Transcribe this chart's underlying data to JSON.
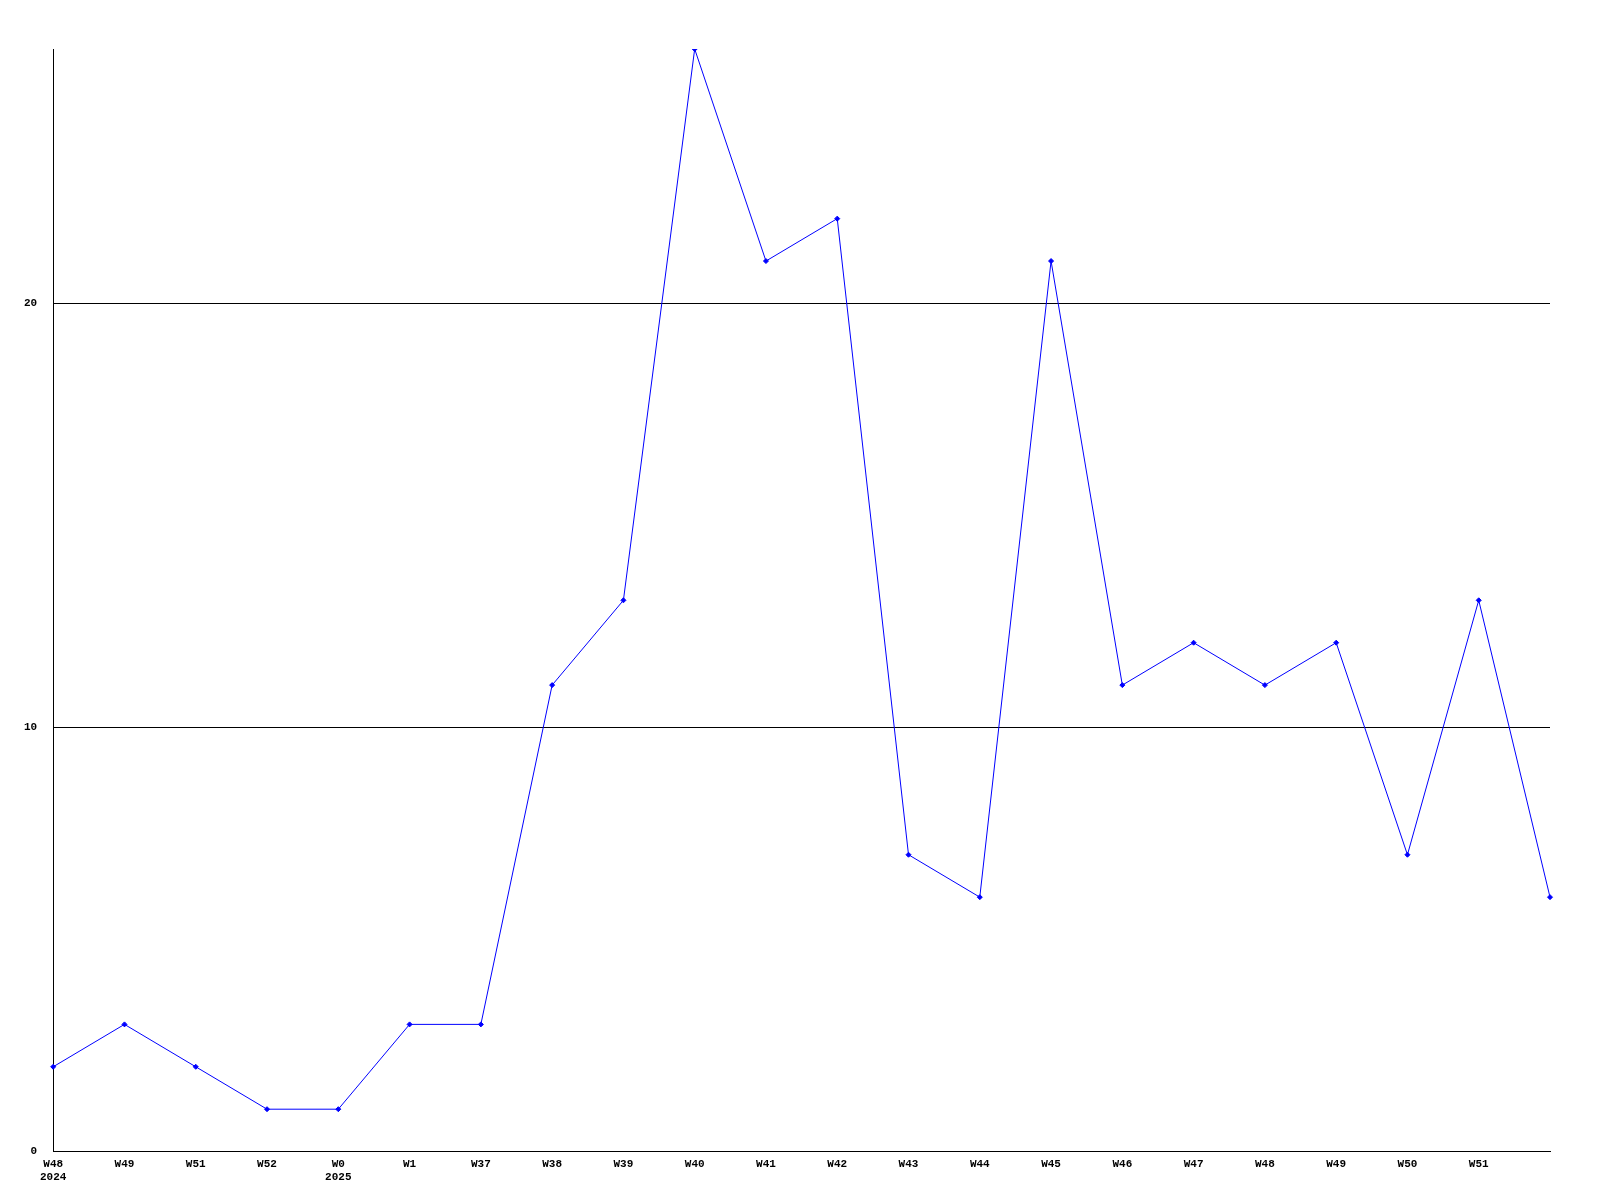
{
  "chart_data": {
    "type": "line",
    "categories": [
      "W48\n2024",
      "W49",
      "W51",
      "W52",
      "W0\n2025",
      "W1",
      "W37",
      "W38",
      "W39",
      "W40",
      "W41",
      "W42",
      "W43",
      "W44",
      "W45",
      "W46",
      "W47",
      "W48",
      "W49",
      "W50",
      "W51",
      null
    ],
    "series": [
      {
        "color": "#0000ff",
        "values": [
          2,
          3,
          2,
          1,
          1,
          3,
          3,
          11,
          13,
          26,
          21,
          22,
          7,
          6,
          21,
          11,
          12,
          11,
          12,
          7,
          13,
          6
        ]
      }
    ],
    "ylim": [
      0,
      26
    ],
    "yticks": [
      0,
      10,
      20
    ],
    "grid": "y",
    "legend": false,
    "marker": "diamond",
    "line_style": "solid"
  }
}
